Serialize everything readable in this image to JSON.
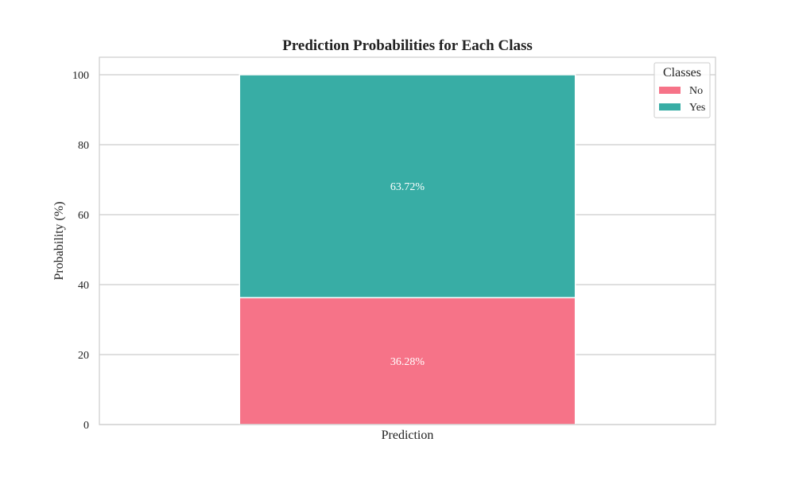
{
  "chart_data": {
    "type": "bar",
    "stacked": true,
    "title": "Prediction Probabilities for Each Class",
    "xlabel": "",
    "ylabel": "Probability (%)",
    "categories": [
      "Prediction"
    ],
    "series": [
      {
        "name": "No",
        "values": [
          36.28
        ],
        "color": "#f67388",
        "label": "36.28%"
      },
      {
        "name": "Yes",
        "values": [
          63.72
        ],
        "color": "#38ada5",
        "label": "63.72%"
      }
    ],
    "ylim": [
      0,
      105
    ],
    "yticks": [
      0,
      20,
      40,
      60,
      80,
      100
    ],
    "ytick_labels": [
      "0",
      "20",
      "40",
      "60",
      "80",
      "100"
    ],
    "grid": true,
    "legend": {
      "title": "Classes",
      "position": "top-right"
    }
  }
}
